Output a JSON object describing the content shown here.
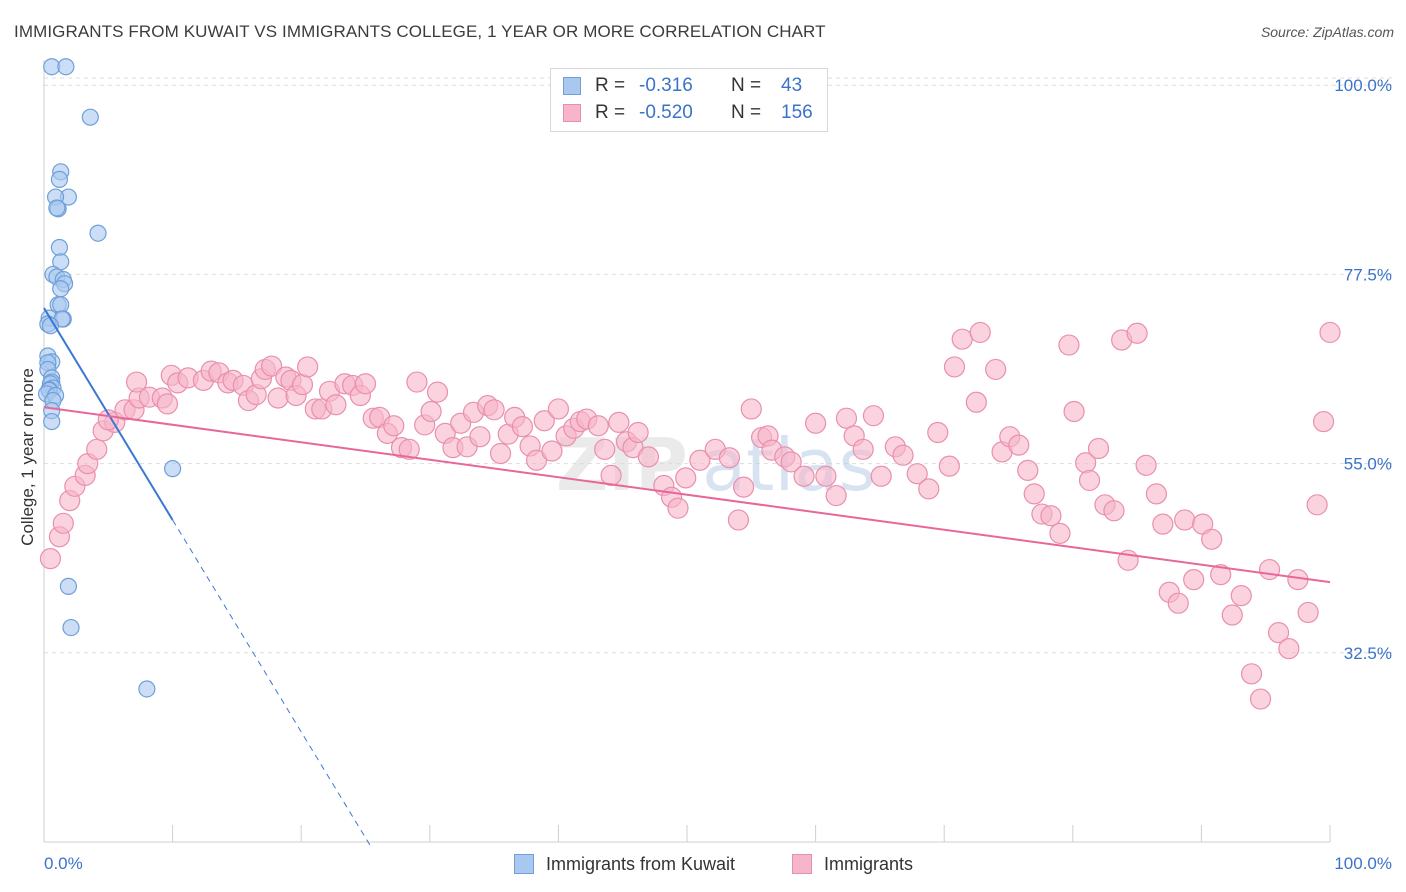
{
  "title": "IMMIGRANTS FROM KUWAIT VS IMMIGRANTS COLLEGE, 1 YEAR OR MORE CORRELATION CHART",
  "source": "Source: ZipAtlas.com",
  "watermark": {
    "zip": "ZIP",
    "atlas": "atlas"
  },
  "legend": {
    "rows": [
      {
        "r_label": "R =",
        "r_value": "-0.316",
        "n_label": "N =",
        "n_value": "43"
      },
      {
        "r_label": "R =",
        "r_value": "-0.520",
        "n_label": "N =",
        "n_value": "156"
      }
    ]
  },
  "bottom_legend": {
    "series1": "Immigrants from Kuwait",
    "series2": "Immigrants"
  },
  "colors": {
    "blue_fill": "#a8c8f0",
    "blue_stroke": "#6f9fd8",
    "blue_line": "#3a78d4",
    "pink_fill": "#f7b5ca",
    "pink_stroke": "#e98fae",
    "pink_line": "#e8679a",
    "axis_label": "#3a73c9",
    "grid": "#dddddd"
  },
  "chart_data": {
    "type": "scatter",
    "title": "IMMIGRANTS FROM KUWAIT VS IMMIGRANTS COLLEGE, 1 YEAR OR MORE CORRELATION CHART",
    "xlabel": "",
    "ylabel": "College, 1 year or more",
    "xlim": [
      0,
      100
    ],
    "ylim": [
      10,
      103
    ],
    "x_tick_labels": [
      "0.0%",
      "100.0%"
    ],
    "y_ticks": [
      32.5,
      55.0,
      77.5,
      100.0
    ],
    "y_tick_labels": [
      "32.5%",
      "55.0%",
      "77.5%",
      "100.0%"
    ],
    "series": [
      {
        "name": "Immigrants from Kuwait",
        "points": [
          [
            0.6,
            102.2
          ],
          [
            1.7,
            102.2
          ],
          [
            3.6,
            96.2
          ],
          [
            1.3,
            89.7
          ],
          [
            1.2,
            88.8
          ],
          [
            1.9,
            86.7
          ],
          [
            0.9,
            86.7
          ],
          [
            1.1,
            85.3
          ],
          [
            1.0,
            85.4
          ],
          [
            4.2,
            82.4
          ],
          [
            1.2,
            80.7
          ],
          [
            1.3,
            79.0
          ],
          [
            0.7,
            77.5
          ],
          [
            1.0,
            77.2
          ],
          [
            1.5,
            76.9
          ],
          [
            1.6,
            76.4
          ],
          [
            1.3,
            75.8
          ],
          [
            1.1,
            73.9
          ],
          [
            1.3,
            73.9
          ],
          [
            0.4,
            72.3
          ],
          [
            1.5,
            72.2
          ],
          [
            1.4,
            72.2
          ],
          [
            0.3,
            71.6
          ],
          [
            0.5,
            71.4
          ],
          [
            0.3,
            67.8
          ],
          [
            0.6,
            67.1
          ],
          [
            0.3,
            67.0
          ],
          [
            0.3,
            66.2
          ],
          [
            0.6,
            65.2
          ],
          [
            0.6,
            64.7
          ],
          [
            0.5,
            64.5
          ],
          [
            0.7,
            64.0
          ],
          [
            0.4,
            63.8
          ],
          [
            0.4,
            63.7
          ],
          [
            0.2,
            63.3
          ],
          [
            0.9,
            63.1
          ],
          [
            0.7,
            62.5
          ],
          [
            0.6,
            61.3
          ],
          [
            0.6,
            60.0
          ],
          [
            10.0,
            54.4
          ],
          [
            1.9,
            40.4
          ],
          [
            2.1,
            35.5
          ],
          [
            8.0,
            28.2
          ]
        ]
      },
      {
        "name": "Immigrants",
        "points": [
          [
            0.5,
            43.7
          ],
          [
            1.2,
            46.3
          ],
          [
            1.5,
            47.9
          ],
          [
            2.0,
            50.6
          ],
          [
            2.4,
            52.3
          ],
          [
            3.2,
            53.6
          ],
          [
            3.4,
            55.0
          ],
          [
            4.1,
            56.7
          ],
          [
            4.6,
            58.9
          ],
          [
            5.5,
            59.9
          ],
          [
            5.0,
            60.2
          ],
          [
            6.3,
            61.4
          ],
          [
            7.0,
            61.4
          ],
          [
            7.4,
            62.8
          ],
          [
            7.2,
            64.7
          ],
          [
            8.2,
            62.9
          ],
          [
            9.2,
            62.8
          ],
          [
            9.6,
            62.1
          ],
          [
            9.9,
            65.5
          ],
          [
            10.4,
            64.6
          ],
          [
            11.2,
            65.2
          ],
          [
            12.4,
            64.9
          ],
          [
            13.0,
            66.0
          ],
          [
            13.6,
            65.8
          ],
          [
            14.3,
            64.6
          ],
          [
            14.7,
            64.9
          ],
          [
            15.5,
            64.3
          ],
          [
            15.9,
            62.5
          ],
          [
            16.5,
            63.2
          ],
          [
            16.9,
            65.1
          ],
          [
            17.2,
            66.2
          ],
          [
            17.7,
            66.6
          ],
          [
            18.2,
            62.8
          ],
          [
            18.8,
            65.3
          ],
          [
            19.2,
            64.9
          ],
          [
            19.6,
            63.1
          ],
          [
            20.1,
            64.4
          ],
          [
            20.5,
            66.5
          ],
          [
            21.1,
            61.5
          ],
          [
            21.6,
            61.5
          ],
          [
            22.2,
            63.6
          ],
          [
            22.7,
            62.0
          ],
          [
            23.4,
            64.5
          ],
          [
            24.0,
            64.3
          ],
          [
            24.6,
            63.1
          ],
          [
            25.0,
            64.5
          ],
          [
            25.6,
            60.4
          ],
          [
            26.1,
            60.5
          ],
          [
            26.7,
            58.6
          ],
          [
            27.2,
            59.5
          ],
          [
            27.8,
            56.9
          ],
          [
            28.4,
            56.7
          ],
          [
            29.0,
            64.7
          ],
          [
            29.6,
            59.6
          ],
          [
            30.1,
            61.2
          ],
          [
            30.6,
            63.5
          ],
          [
            31.2,
            58.6
          ],
          [
            31.8,
            56.9
          ],
          [
            32.4,
            59.8
          ],
          [
            32.9,
            57.0
          ],
          [
            33.4,
            61.1
          ],
          [
            33.9,
            58.2
          ],
          [
            34.5,
            61.9
          ],
          [
            35.0,
            61.4
          ],
          [
            35.5,
            56.2
          ],
          [
            36.1,
            58.5
          ],
          [
            36.6,
            60.5
          ],
          [
            37.2,
            59.4
          ],
          [
            37.8,
            57.1
          ],
          [
            38.3,
            55.4
          ],
          [
            38.9,
            60.1
          ],
          [
            39.5,
            56.5
          ],
          [
            40.0,
            61.5
          ],
          [
            40.6,
            58.3
          ],
          [
            41.2,
            59.2
          ],
          [
            41.7,
            60.0
          ],
          [
            42.2,
            60.3
          ],
          [
            43.1,
            59.5
          ],
          [
            43.6,
            56.7
          ],
          [
            44.1,
            53.6
          ],
          [
            44.7,
            59.9
          ],
          [
            45.3,
            57.6
          ],
          [
            45.8,
            56.9
          ],
          [
            46.2,
            58.7
          ],
          [
            47.0,
            55.8
          ],
          [
            48.2,
            52.4
          ],
          [
            48.8,
            51.0
          ],
          [
            49.3,
            49.7
          ],
          [
            49.9,
            53.3
          ],
          [
            51.0,
            55.4
          ],
          [
            52.2,
            56.7
          ],
          [
            53.3,
            55.7
          ],
          [
            54.0,
            48.3
          ],
          [
            54.4,
            52.2
          ],
          [
            55.0,
            61.5
          ],
          [
            55.8,
            58.1
          ],
          [
            56.3,
            58.3
          ],
          [
            56.6,
            56.6
          ],
          [
            57.6,
            55.8
          ],
          [
            58.1,
            55.2
          ],
          [
            59.1,
            53.5
          ],
          [
            60.0,
            59.8
          ],
          [
            60.8,
            53.5
          ],
          [
            61.6,
            51.2
          ],
          [
            62.4,
            60.4
          ],
          [
            63.0,
            58.3
          ],
          [
            63.7,
            56.7
          ],
          [
            64.5,
            60.7
          ],
          [
            65.1,
            53.5
          ],
          [
            66.2,
            57.0
          ],
          [
            66.8,
            56.0
          ],
          [
            67.9,
            53.8
          ],
          [
            68.8,
            52.0
          ],
          [
            69.5,
            58.7
          ],
          [
            70.4,
            54.7
          ],
          [
            70.8,
            66.5
          ],
          [
            71.4,
            69.8
          ],
          [
            72.5,
            62.3
          ],
          [
            72.8,
            70.6
          ],
          [
            74.0,
            66.2
          ],
          [
            74.5,
            56.4
          ],
          [
            75.1,
            58.2
          ],
          [
            75.8,
            57.2
          ],
          [
            76.5,
            54.2
          ],
          [
            77.0,
            51.4
          ],
          [
            77.6,
            49.0
          ],
          [
            78.3,
            48.8
          ],
          [
            79.0,
            46.7
          ],
          [
            79.7,
            69.1
          ],
          [
            80.1,
            61.2
          ],
          [
            81.0,
            55.1
          ],
          [
            81.3,
            53.0
          ],
          [
            82.0,
            56.8
          ],
          [
            82.5,
            50.1
          ],
          [
            83.2,
            49.4
          ],
          [
            83.8,
            69.7
          ],
          [
            84.3,
            43.5
          ],
          [
            85.0,
            70.5
          ],
          [
            85.7,
            54.8
          ],
          [
            86.5,
            51.4
          ],
          [
            87.0,
            47.8
          ],
          [
            87.5,
            39.7
          ],
          [
            88.2,
            38.4
          ],
          [
            88.7,
            48.3
          ],
          [
            89.4,
            41.2
          ],
          [
            90.1,
            47.8
          ],
          [
            90.8,
            46.0
          ],
          [
            91.5,
            41.8
          ],
          [
            92.4,
            37.0
          ],
          [
            93.1,
            39.3
          ],
          [
            93.9,
            30.0
          ],
          [
            94.6,
            27.0
          ],
          [
            95.3,
            42.4
          ],
          [
            96.0,
            34.9
          ],
          [
            96.8,
            33.0
          ],
          [
            97.5,
            41.2
          ],
          [
            98.3,
            37.3
          ],
          [
            99.0,
            50.1
          ],
          [
            99.5,
            60.0
          ],
          [
            100.0,
            70.6
          ]
        ]
      }
    ],
    "trend_lines": [
      {
        "name": "Immigrants from Kuwait",
        "x": [
          0,
          10
        ],
        "y": [
          73.5,
          48.3
        ],
        "dashed_extension_to_x": 25.5
      },
      {
        "name": "Immigrants",
        "x": [
          0,
          100
        ],
        "y": [
          61.7,
          40.9
        ]
      }
    ]
  }
}
